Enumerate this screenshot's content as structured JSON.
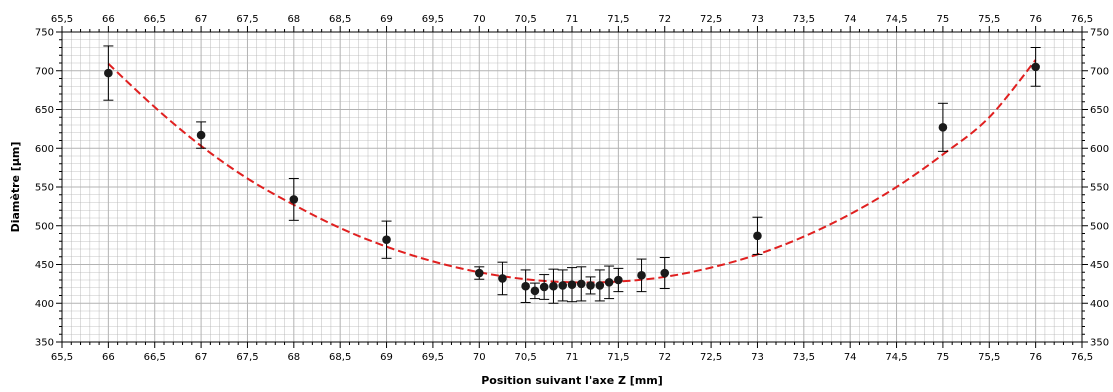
{
  "chart_data": {
    "type": "scatter",
    "xlabel": "Position suivant l'axe Z [mm]",
    "ylabel": "Diamètre [µm]",
    "xlim": [
      65.5,
      76.5
    ],
    "ylim": [
      350,
      750
    ],
    "x_ticks": [
      "65,5",
      "66",
      "66,5",
      "67",
      "67,5",
      "68",
      "68,5",
      "69",
      "69,5",
      "70",
      "70,5",
      "71",
      "71,5",
      "72",
      "72,5",
      "73",
      "73,5",
      "74",
      "74,5",
      "75",
      "75,5",
      "76",
      "76,5"
    ],
    "x_tick_values": [
      65.5,
      66,
      66.5,
      67,
      67.5,
      68,
      68.5,
      69,
      69.5,
      70,
      70.5,
      71,
      71.5,
      72,
      72.5,
      73,
      73.5,
      74,
      74.5,
      75,
      75.5,
      76,
      76.5
    ],
    "y_ticks": [
      "350",
      "400",
      "450",
      "500",
      "550",
      "600",
      "650",
      "700",
      "750"
    ],
    "y_tick_values": [
      350,
      400,
      450,
      500,
      550,
      600,
      650,
      700,
      750
    ],
    "grid": true,
    "points": [
      {
        "x": 66,
        "y": 697,
        "err": 35
      },
      {
        "x": 67,
        "y": 617,
        "err": 17
      },
      {
        "x": 68,
        "y": 534,
        "err": 27
      },
      {
        "x": 69,
        "y": 482,
        "err": 24
      },
      {
        "x": 70,
        "y": 439,
        "err": 8
      },
      {
        "x": 70.25,
        "y": 432,
        "err": 21
      },
      {
        "x": 70.5,
        "y": 422,
        "err": 21
      },
      {
        "x": 70.6,
        "y": 416,
        "err": 10
      },
      {
        "x": 70.7,
        "y": 421,
        "err": 16
      },
      {
        "x": 70.8,
        "y": 422,
        "err": 22
      },
      {
        "x": 70.9,
        "y": 423,
        "err": 20
      },
      {
        "x": 71,
        "y": 424,
        "err": 22
      },
      {
        "x": 71.1,
        "y": 425,
        "err": 22
      },
      {
        "x": 71.2,
        "y": 423,
        "err": 11
      },
      {
        "x": 71.3,
        "y": 423,
        "err": 20
      },
      {
        "x": 71.4,
        "y": 427,
        "err": 21
      },
      {
        "x": 71.5,
        "y": 430,
        "err": 15
      },
      {
        "x": 71.75,
        "y": 436,
        "err": 21
      },
      {
        "x": 72,
        "y": 439,
        "err": 20
      },
      {
        "x": 73,
        "y": 487,
        "err": 24
      },
      {
        "x": 75,
        "y": 627,
        "err": 31
      },
      {
        "x": 76,
        "y": 705,
        "err": 25
      }
    ],
    "fit_curve": {
      "style": "dashed",
      "x": [
        66,
        66.5,
        67,
        67.5,
        68,
        68.5,
        69,
        69.5,
        70,
        70.5,
        71,
        71.5,
        72,
        72.5,
        73,
        73.5,
        74,
        74.5,
        75,
        75.5,
        76
      ],
      "y": [
        709,
        653,
        603,
        561,
        527,
        497,
        473,
        454,
        440,
        431,
        427,
        428,
        434,
        446,
        463,
        486,
        515,
        550,
        592,
        640,
        714
      ]
    },
    "colors": {
      "fit": "#e02020",
      "points": "#1a1a1a",
      "grid": "#b3b3b3",
      "axis": "#000000"
    }
  }
}
